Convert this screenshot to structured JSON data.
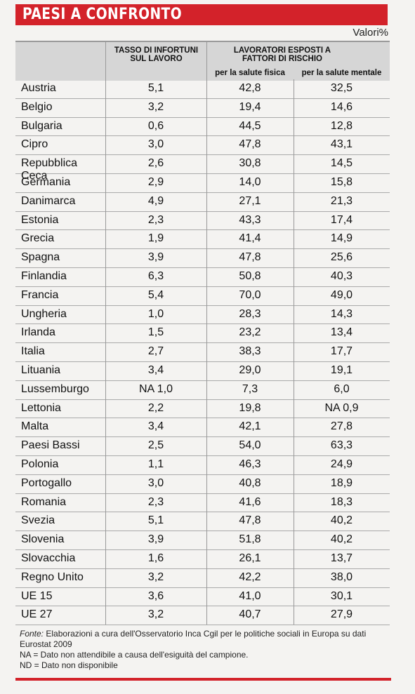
{
  "header": {
    "title": "PAESI A CONFRONTO",
    "unit": "Valori%"
  },
  "table": {
    "columns": {
      "country": "",
      "injury_rate": "TASSO DI INFORTUNI SUL LAVORO",
      "exposed_group": "LAVORATORI ESPOSTI A FATTORI DI RISCHIO",
      "physical": "per la salute fisica",
      "mental": "per la salute mentale"
    },
    "rows": [
      [
        "Austria",
        "5,1",
        "42,8",
        "32,5"
      ],
      [
        "Belgio",
        "3,2",
        "19,4",
        "14,6"
      ],
      [
        "Bulgaria",
        "0,6",
        "44,5",
        "12,8"
      ],
      [
        "Cipro",
        "3,0",
        "47,8",
        "43,1"
      ],
      [
        "Repubblica Ceca",
        "2,6",
        "30,8",
        "14,5"
      ],
      [
        "Germania",
        "2,9",
        "14,0",
        "15,8"
      ],
      [
        "Danimarca",
        "4,9",
        "27,1",
        "21,3"
      ],
      [
        "Estonia",
        "2,3",
        "43,3",
        "17,4"
      ],
      [
        "Grecia",
        "1,9",
        "41,4",
        "14,9"
      ],
      [
        "Spagna",
        "3,9",
        "47,8",
        "25,6"
      ],
      [
        "Finlandia",
        "6,3",
        "50,8",
        "40,3"
      ],
      [
        "Francia",
        "5,4",
        "70,0",
        "49,0"
      ],
      [
        "Ungheria",
        "1,0",
        "28,3",
        "14,3"
      ],
      [
        "Irlanda",
        "1,5",
        "23,2",
        "13,4"
      ],
      [
        "Italia",
        "2,7",
        "38,3",
        "17,7"
      ],
      [
        "Lituania",
        "3,4",
        "29,0",
        "19,1"
      ],
      [
        "Lussemburgo",
        "NA 1,0",
        "7,3",
        "6,0"
      ],
      [
        "Lettonia",
        "2,2",
        "19,8",
        "NA 0,9"
      ],
      [
        "Malta",
        "3,4",
        "42,1",
        "27,8"
      ],
      [
        "Paesi Bassi",
        "2,5",
        "54,0",
        "63,3"
      ],
      [
        "Polonia",
        "1,1",
        "46,3",
        "24,9"
      ],
      [
        "Portogallo",
        "3,0",
        "40,8",
        "18,9"
      ],
      [
        "Romania",
        "2,3",
        "41,6",
        "18,3"
      ],
      [
        "Svezia",
        "5,1",
        "47,8",
        "40,2"
      ],
      [
        "Slovenia",
        "3,9",
        "51,8",
        "40,2"
      ],
      [
        "Slovacchia",
        "1,6",
        "26,1",
        "13,7"
      ],
      [
        "Regno Unito",
        "3,2",
        "42,2",
        "38,0"
      ],
      [
        "UE 15",
        "3,6",
        "41,0",
        "30,1"
      ],
      [
        "UE 27",
        "3,2",
        "40,7",
        "27,9"
      ]
    ]
  },
  "footer": {
    "source_label": "Fonte:",
    "source_text": "Elaborazioni a cura dell'Osservatorio Inca Cgil per le politiche sociali in Europa su dati Eurostat 2009",
    "na_note": "NA = Dato non attendibile a causa dell'esiguità del campione.",
    "nd_note": "ND = Dato non disponibile"
  }
}
